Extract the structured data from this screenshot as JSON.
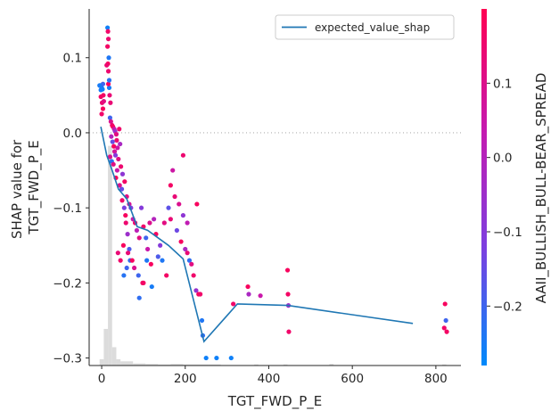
{
  "chart_data": {
    "type": "scatter",
    "xlabel": "TGT_FWD_P_E",
    "ylabel_lines": [
      "SHAP value for",
      "TGT_FWD_P_E"
    ],
    "colorbar_label": "AAII_BULLISH_BULL-BEAR_SPREAD",
    "xlim": [
      -30,
      860
    ],
    "ylim": [
      -0.31,
      0.165
    ],
    "x_ticks": [
      0,
      200,
      400,
      600,
      800
    ],
    "x_tick_labels": [
      "0",
      "200",
      "400",
      "600",
      "800"
    ],
    "y_ticks": [
      0.1,
      0.0,
      -0.1,
      -0.2,
      -0.3
    ],
    "y_tick_labels": [
      "0.1",
      "0.0",
      "−0.1",
      "−0.2",
      "−0.3"
    ],
    "colorbar_range": [
      -0.28,
      0.2
    ],
    "colorbar_ticks": [
      0.1,
      0.0,
      -0.1,
      -0.2
    ],
    "colorbar_tick_labels": [
      "0.1",
      "0.0",
      "−0.1",
      "−0.2"
    ],
    "colormap": [
      "#008afb",
      "#7c3fe0",
      "#c51ab0",
      "#ff0052"
    ],
    "line_color": "#1f77b4",
    "histogram_color": "#dcdcdc",
    "legend": {
      "label": "expected_value_shap",
      "position": "top-right"
    },
    "expected_value_line": {
      "name": "expected_value_shap",
      "points": [
        [
          -2,
          0.008
        ],
        [
          12,
          -0.03
        ],
        [
          25,
          -0.05
        ],
        [
          40,
          -0.075
        ],
        [
          60,
          -0.088
        ],
        [
          85,
          -0.125
        ],
        [
          110,
          -0.13
        ],
        [
          160,
          -0.15
        ],
        [
          195,
          -0.168
        ],
        [
          245,
          -0.278
        ],
        [
          325,
          -0.228
        ],
        [
          445,
          -0.23
        ],
        [
          745,
          -0.254
        ]
      ]
    },
    "histogram": {
      "bins": [
        [
          -5,
          5,
          0.012
        ],
        [
          5,
          15,
          0.07
        ],
        [
          15,
          25,
          0.42
        ],
        [
          25,
          35,
          0.035
        ],
        [
          35,
          45,
          0.012
        ],
        [
          45,
          75,
          0.008
        ],
        [
          75,
          105,
          0.004
        ],
        [
          105,
          135,
          0.003
        ],
        [
          135,
          165,
          0.002
        ],
        [
          165,
          195,
          0.003
        ],
        [
          195,
          225,
          0.002
        ],
        [
          225,
          255,
          0.002
        ],
        [
          255,
          285,
          0.002
        ],
        [
          365,
          375,
          0.002
        ],
        [
          435,
          445,
          0.002
        ],
        [
          545,
          555,
          0.003
        ],
        [
          815,
          825,
          0.002
        ]
      ]
    },
    "points": [
      [
        -3,
        0.063,
        -0.26
      ],
      [
        0,
        0.06,
        -0.24
      ],
      [
        3,
        0.065,
        -0.2
      ],
      [
        -2,
        0.048,
        0.17
      ],
      [
        1,
        0.04,
        0.15
      ],
      [
        3,
        0.032,
        0.18
      ],
      [
        0,
        0.025,
        0.16
      ],
      [
        5,
        0.042,
        0.12
      ],
      [
        -2,
        0.057,
        -0.25
      ],
      [
        4,
        0.05,
        0.17
      ],
      [
        14,
        0.14,
        -0.26
      ],
      [
        15,
        0.135,
        0.16
      ],
      [
        16,
        0.125,
        0.15
      ],
      [
        14,
        0.115,
        0.17
      ],
      [
        17,
        0.1,
        -0.24
      ],
      [
        15,
        0.092,
        0.18
      ],
      [
        16,
        0.082,
        0.15
      ],
      [
        18,
        0.06,
        -0.25
      ],
      [
        19,
        0.05,
        0.14
      ],
      [
        16,
        0.065,
        0.18
      ],
      [
        20,
        0.02,
        -0.2
      ],
      [
        22,
        0.015,
        0.1
      ],
      [
        25,
        0.01,
        0.15
      ],
      [
        27,
        0.008,
        0.18
      ],
      [
        30,
        0.005,
        0.05
      ],
      [
        32,
        0.002,
        -0.05
      ],
      [
        35,
        -0.002,
        0.12
      ],
      [
        23,
        -0.005,
        0.0
      ],
      [
        26,
        -0.012,
        -0.15
      ],
      [
        29,
        -0.018,
        0.18
      ],
      [
        31,
        -0.025,
        0.08
      ],
      [
        33,
        -0.03,
        -0.1
      ],
      [
        20,
        -0.032,
        0.1
      ],
      [
        24,
        -0.038,
        -0.22
      ],
      [
        28,
        -0.042,
        0.12
      ],
      [
        36,
        -0.01,
        0.15
      ],
      [
        38,
        -0.02,
        0.06
      ],
      [
        42,
        0.005,
        0.16
      ],
      [
        44,
        -0.015,
        -0.02
      ],
      [
        40,
        -0.035,
        0.12
      ],
      [
        46,
        -0.045,
        0.15
      ],
      [
        50,
        -0.055,
        -0.08
      ],
      [
        55,
        -0.065,
        0.17
      ],
      [
        48,
        -0.075,
        -0.15
      ],
      [
        60,
        -0.085,
        0.12
      ],
      [
        66,
        -0.095,
        0.08
      ],
      [
        70,
        -0.1,
        -0.12
      ],
      [
        75,
        -0.115,
        0.04
      ],
      [
        58,
        -0.12,
        0.15
      ],
      [
        62,
        -0.135,
        -0.05
      ],
      [
        52,
        -0.15,
        0.18
      ],
      [
        66,
        -0.155,
        -0.18
      ],
      [
        80,
        -0.12,
        0.15
      ],
      [
        84,
        -0.13,
        0.02
      ],
      [
        90,
        -0.14,
        0.12
      ],
      [
        95,
        -0.1,
        -0.1
      ],
      [
        100,
        -0.125,
        0.16
      ],
      [
        106,
        -0.14,
        -0.2
      ],
      [
        115,
        -0.12,
        0.1
      ],
      [
        125,
        -0.115,
        0.0
      ],
      [
        130,
        -0.135,
        0.18
      ],
      [
        140,
        -0.15,
        -0.1
      ],
      [
        150,
        -0.12,
        0.12
      ],
      [
        160,
        -0.1,
        -0.16
      ],
      [
        165,
        -0.07,
        0.17
      ],
      [
        170,
        -0.05,
        0.06
      ],
      [
        175,
        -0.085,
        0.14
      ],
      [
        180,
        -0.13,
        -0.14
      ],
      [
        190,
        -0.145,
        0.18
      ],
      [
        200,
        -0.155,
        -0.02
      ],
      [
        210,
        -0.17,
        -0.22
      ],
      [
        220,
        -0.19,
        0.16
      ],
      [
        226,
        -0.21,
        -0.06
      ],
      [
        232,
        -0.215,
        0.18
      ],
      [
        240,
        -0.25,
        -0.24
      ],
      [
        250,
        -0.3,
        -0.26
      ],
      [
        275,
        -0.3,
        -0.26
      ],
      [
        310,
        -0.3,
        -0.26
      ],
      [
        315,
        -0.228,
        0.16
      ],
      [
        350,
        -0.205,
        0.18
      ],
      [
        352,
        -0.215,
        -0.02
      ],
      [
        380,
        -0.217,
        0.05
      ],
      [
        445,
        -0.183,
        0.18
      ],
      [
        446,
        -0.215,
        0.17
      ],
      [
        447,
        -0.23,
        -0.05
      ],
      [
        448,
        -0.265,
        0.16
      ],
      [
        822,
        -0.228,
        0.18
      ],
      [
        824,
        -0.25,
        -0.2
      ],
      [
        820,
        -0.26,
        0.16
      ],
      [
        826,
        -0.265,
        0.17
      ],
      [
        -5,
        0.063,
        -0.25
      ],
      [
        2,
        0.058,
        -0.26
      ],
      [
        12,
        0.09,
        0.15
      ],
      [
        18,
        0.07,
        -0.23
      ],
      [
        21,
        0.04,
        0.14
      ],
      [
        34,
        -0.06,
        0.18
      ],
      [
        37,
        -0.05,
        0.05
      ],
      [
        43,
        -0.07,
        0.1
      ],
      [
        49,
        -0.09,
        0.16
      ],
      [
        54,
        -0.1,
        -0.12
      ],
      [
        57,
        -0.11,
        0.18
      ],
      [
        63,
        -0.16,
        0.14
      ],
      [
        68,
        -0.17,
        -0.22
      ],
      [
        73,
        -0.17,
        0.18
      ],
      [
        78,
        -0.18,
        0.1
      ],
      [
        88,
        -0.19,
        -0.2
      ],
      [
        98,
        -0.2,
        0.16
      ],
      [
        108,
        -0.17,
        -0.24
      ],
      [
        118,
        -0.175,
        0.18
      ],
      [
        145,
        -0.17,
        -0.24
      ],
      [
        155,
        -0.19,
        0.17
      ],
      [
        185,
        -0.095,
        0.1
      ],
      [
        195,
        -0.11,
        -0.08
      ],
      [
        205,
        -0.16,
        0.14
      ],
      [
        215,
        -0.175,
        0.12
      ],
      [
        228,
        -0.095,
        0.18
      ],
      [
        236,
        -0.215,
        0.16
      ],
      [
        242,
        -0.27,
        -0.22
      ],
      [
        110,
        -0.155,
        0.05
      ],
      [
        135,
        -0.165,
        -0.18
      ],
      [
        165,
        -0.115,
        0.14
      ],
      [
        195,
        -0.03,
        0.15
      ],
      [
        205,
        -0.12,
        0.03
      ],
      [
        90,
        -0.22,
        -0.22
      ],
      [
        100,
        -0.2,
        0.17
      ],
      [
        120,
        -0.205,
        -0.25
      ],
      [
        60,
        -0.18,
        -0.2
      ],
      [
        45,
        -0.17,
        0.16
      ],
      [
        53,
        -0.19,
        -0.23
      ],
      [
        39,
        -0.16,
        0.14
      ]
    ]
  }
}
